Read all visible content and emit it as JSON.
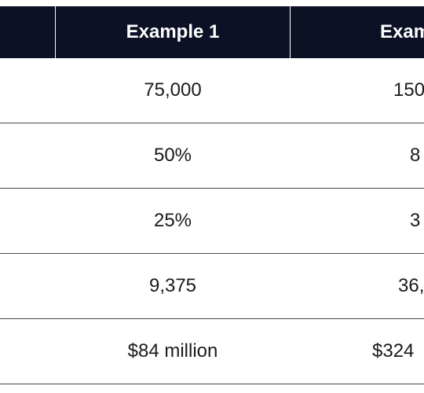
{
  "table": {
    "header": {
      "col0": "",
      "col1": "Example 1",
      "col2": "Exam"
    },
    "rows": [
      {
        "col1": "75,000",
        "col2": "150"
      },
      {
        "col1": "50%",
        "col2": "8"
      },
      {
        "col1": "25%",
        "col2": "3"
      },
      {
        "col1": "9,375",
        "col2": "36,"
      },
      {
        "col1": "$84 million",
        "col2": "$324"
      }
    ]
  },
  "colors": {
    "header_bg": "#0d1126",
    "header_text": "#ffffff",
    "body_text": "#1a1a1a",
    "row_divider": "#4a4a4a"
  }
}
